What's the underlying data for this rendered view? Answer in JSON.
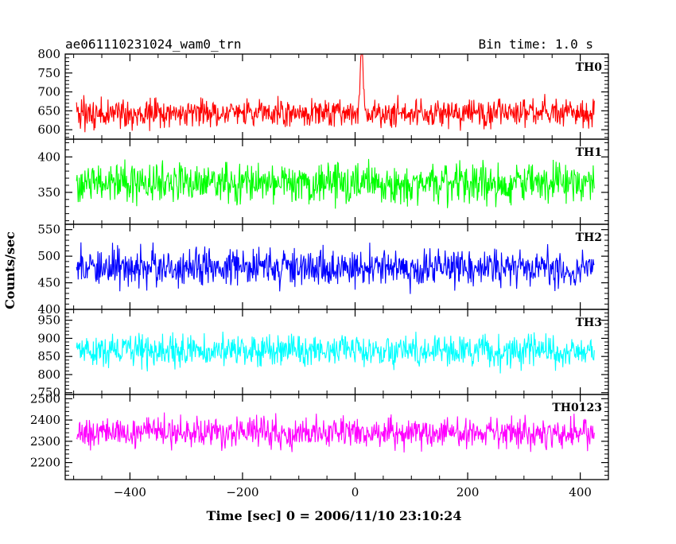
{
  "header": {
    "title": "ae061110231024_wam0_trn",
    "bin_time": "Bin time: 1.0 s"
  },
  "chart_data": {
    "type": "line",
    "title": "ae061110231024_wam0_trn",
    "subtitle": "Bin time: 1.0 s",
    "xlabel": "Time [sec] 0 = 2006/11/10 23:10:24",
    "ylabel": "Counts/sec",
    "xlim": [
      -515,
      450
    ],
    "xticks": [
      -400,
      -200,
      0,
      200,
      400
    ],
    "x_range_data": [
      -495,
      425
    ],
    "grid": false,
    "panels": [
      {
        "name": "TH0",
        "color": "#ff0000",
        "ylim": [
          575,
          800
        ],
        "yticks": [
          600,
          650,
          700,
          750,
          800
        ],
        "baseline": 645,
        "noise_amp": 32,
        "peak": {
          "x": 12,
          "value": 800
        }
      },
      {
        "name": "TH1",
        "color": "#00ff00",
        "ylim": [
          305,
          425
        ],
        "yticks": [
          350,
          400
        ],
        "baseline": 362,
        "noise_amp": 24
      },
      {
        "name": "TH2",
        "color": "#0000ff",
        "ylim": [
          400,
          560
        ],
        "yticks": [
          400,
          450,
          500,
          550
        ],
        "baseline": 478,
        "noise_amp": 30
      },
      {
        "name": "TH3",
        "color": "#00ffff",
        "ylim": [
          745,
          980
        ],
        "yticks": [
          750,
          800,
          850,
          900,
          950
        ],
        "baseline": 865,
        "noise_amp": 38
      },
      {
        "name": "TH0123",
        "color": "#ff00ff",
        "ylim": [
          2120,
          2520
        ],
        "yticks": [
          2200,
          2300,
          2400,
          2500
        ],
        "baseline": 2340,
        "noise_amp": 62
      }
    ]
  }
}
